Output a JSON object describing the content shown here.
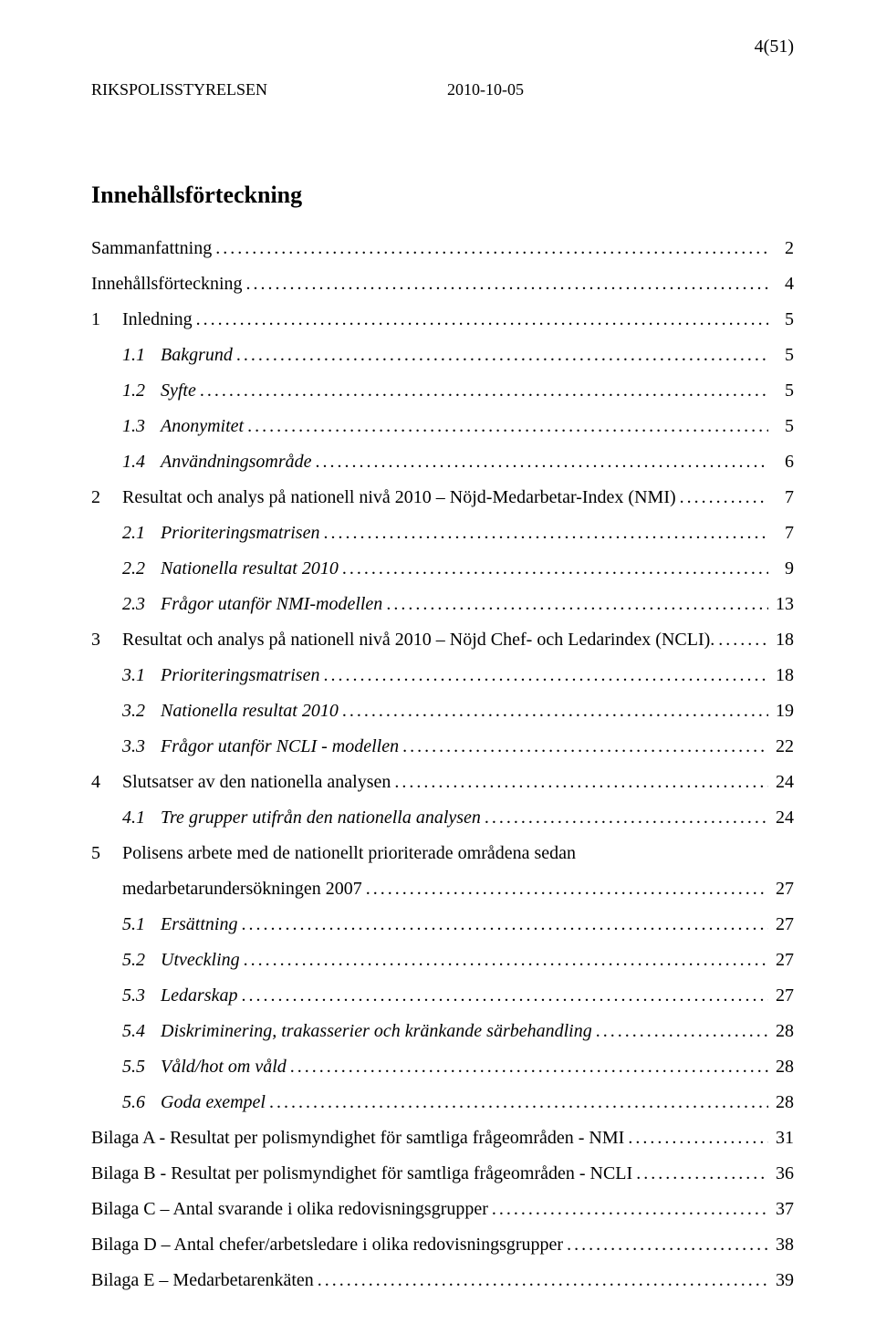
{
  "page_number_top": "4(51)",
  "header": {
    "org": "RIKSPOLISSTYRELSEN",
    "date": "2010-10-05"
  },
  "toc_title": "Innehållsförteckning",
  "entries": [
    {
      "num": "",
      "text": "Sammanfattning",
      "page": "2",
      "italic": false,
      "level": 0
    },
    {
      "num": "",
      "text": "Innehållsförteckning",
      "page": "4",
      "italic": false,
      "level": 0
    },
    {
      "num": "1",
      "text": "Inledning",
      "page": "5",
      "italic": false,
      "level": 0
    },
    {
      "num": "1.1",
      "text": "Bakgrund",
      "page": "5",
      "italic": true,
      "level": 1
    },
    {
      "num": "1.2",
      "text": "Syfte",
      "page": "5",
      "italic": true,
      "level": 1
    },
    {
      "num": "1.3",
      "text": "Anonymitet",
      "page": "5",
      "italic": true,
      "level": 1
    },
    {
      "num": "1.4",
      "text": "Användningsområde",
      "page": "6",
      "italic": true,
      "level": 1
    },
    {
      "num": "2",
      "text": "Resultat och analys på nationell nivå 2010 – Nöjd-Medarbetar-Index (NMI)",
      "page": "7",
      "italic": false,
      "level": 0
    },
    {
      "num": "2.1",
      "text": "Prioriteringsmatrisen",
      "page": "7",
      "italic": true,
      "level": 1
    },
    {
      "num": "2.2",
      "text": "Nationella resultat 2010",
      "page": "9",
      "italic": true,
      "level": 1
    },
    {
      "num": "2.3",
      "text": "Frågor utanför NMI-modellen",
      "page": "13",
      "italic": true,
      "level": 1
    },
    {
      "num": "3",
      "text": "Resultat och analys på nationell nivå 2010 – Nöjd Chef- och Ledarindex (NCLI).",
      "page": "18",
      "italic": false,
      "level": 0
    },
    {
      "num": "3.1",
      "text": "Prioriteringsmatrisen",
      "page": "18",
      "italic": true,
      "level": 1
    },
    {
      "num": "3.2",
      "text": "Nationella resultat 2010",
      "page": "19",
      "italic": true,
      "level": 1
    },
    {
      "num": "3.3",
      "text": "Frågor utanför NCLI - modellen",
      "page": "22",
      "italic": true,
      "level": 1
    },
    {
      "num": "4",
      "text": "Slutsatser av den nationella analysen",
      "page": "24",
      "italic": false,
      "level": 0
    },
    {
      "num": "4.1",
      "text": "Tre grupper utifrån den nationella analysen",
      "page": "24",
      "italic": true,
      "level": 1
    },
    {
      "num": "5",
      "text": "Polisens arbete med de nationellt prioriterade områdena sedan",
      "page": "",
      "italic": false,
      "level": 0,
      "wrap": true
    },
    {
      "num": "",
      "text": "medarbetarundersökningen 2007",
      "page": "27",
      "italic": false,
      "level": 0,
      "wrapCont": true
    },
    {
      "num": "5.1",
      "text": "Ersättning",
      "page": "27",
      "italic": true,
      "level": 1
    },
    {
      "num": "5.2",
      "text": "Utveckling",
      "page": "27",
      "italic": true,
      "level": 1
    },
    {
      "num": "5.3",
      "text": "Ledarskap",
      "page": "27",
      "italic": true,
      "level": 1
    },
    {
      "num": "5.4",
      "text": "Diskriminering, trakasserier och kränkande särbehandling",
      "page": "28",
      "italic": true,
      "level": 1
    },
    {
      "num": "5.5",
      "text": "Våld/hot om våld",
      "page": "28",
      "italic": true,
      "level": 1
    },
    {
      "num": "5.6",
      "text": "Goda exempel",
      "page": "28",
      "italic": true,
      "level": 1
    },
    {
      "num": "",
      "text": "Bilaga A - Resultat per polismyndighet för samtliga frågeområden - NMI",
      "page": "31",
      "italic": false,
      "level": 0
    },
    {
      "num": "",
      "text": "Bilaga B - Resultat per polismyndighet för samtliga frågeområden - NCLI",
      "page": "36",
      "italic": false,
      "level": 0
    },
    {
      "num": "",
      "text": "Bilaga C – Antal svarande i olika redovisningsgrupper",
      "page": "37",
      "italic": false,
      "level": 0
    },
    {
      "num": "",
      "text": "Bilaga D – Antal chefer/arbetsledare i olika redovisningsgrupper",
      "page": "38",
      "italic": false,
      "level": 0
    },
    {
      "num": "",
      "text": "Bilaga E – Medarbetarenkäten",
      "page": "39",
      "italic": false,
      "level": 0
    }
  ]
}
